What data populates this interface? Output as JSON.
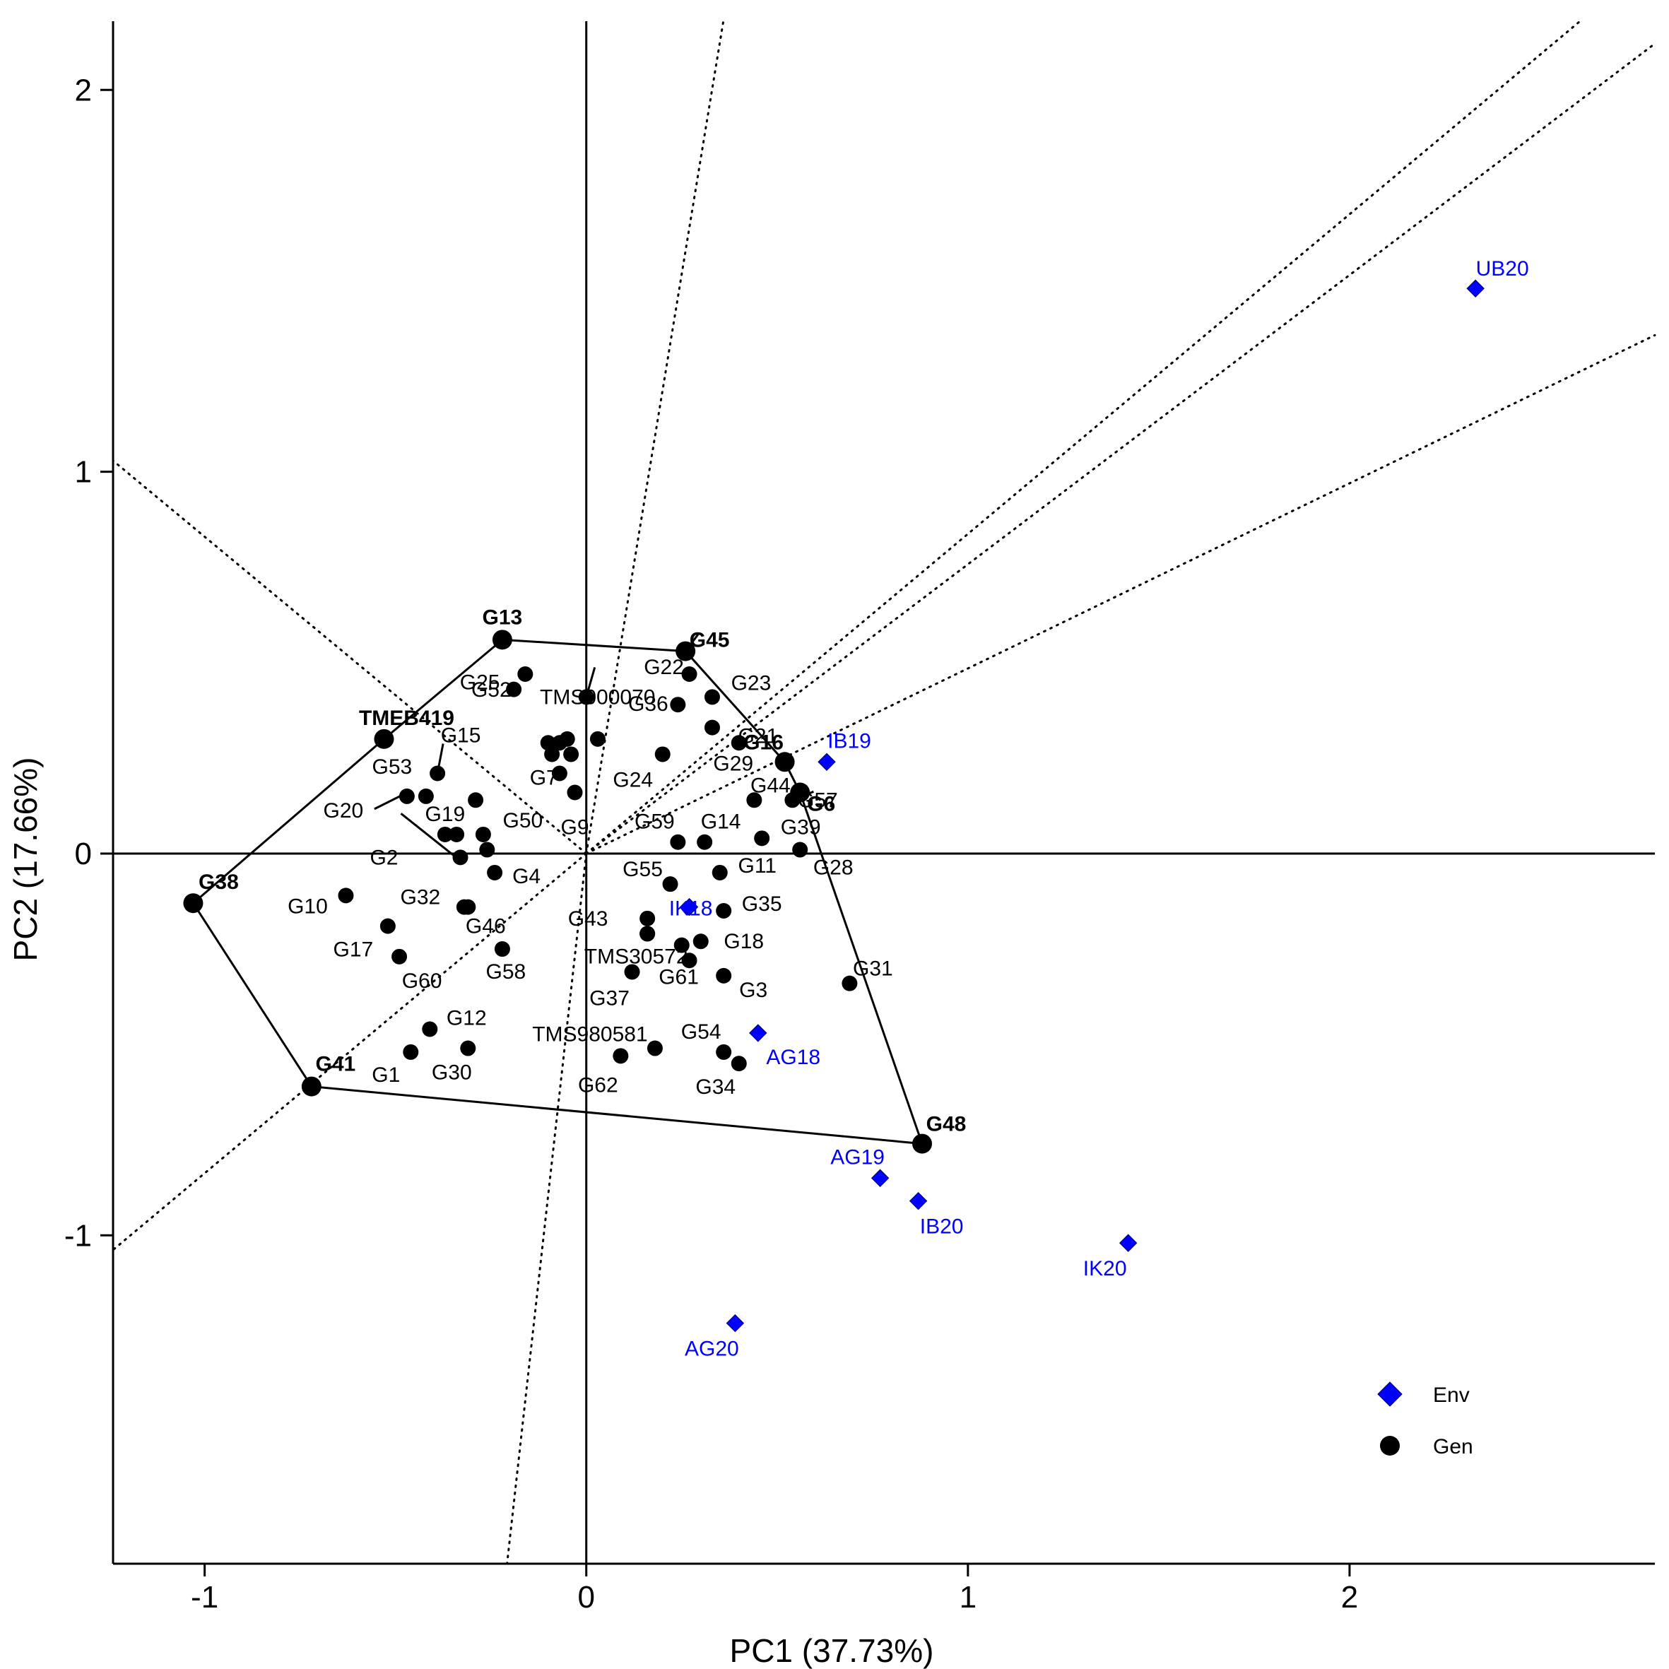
{
  "chart_data": {
    "type": "scatter",
    "title": "",
    "xlabel": "PC1 (37.73%)",
    "ylabel": "PC2 (17.66%)",
    "xlim": [
      -1.24,
      2.8
    ],
    "ylim": [
      -1.86,
      2.18
    ],
    "xticks": [
      -1,
      0,
      1,
      2
    ],
    "yticks": [
      -1,
      0,
      1,
      2
    ],
    "xtick_labels": [
      "-1",
      "0",
      "1",
      "2"
    ],
    "ytick_labels": [
      "-1",
      "0",
      "1",
      "2"
    ],
    "grid": false,
    "legend_position": "bottom-right",
    "env_color": "#0000ff",
    "gen_color": "#000000",
    "legend": [
      {
        "name": "Env",
        "marker": "diamond",
        "color": "#0000ff"
      },
      {
        "name": "Gen",
        "marker": "circle",
        "color": "#000000"
      }
    ],
    "environments": [
      {
        "name": "UB20",
        "x": 2.33,
        "y": 1.48
      },
      {
        "name": "IB19",
        "x": 0.63,
        "y": 0.24
      },
      {
        "name": "IK18",
        "x": 0.27,
        "y": -0.14
      },
      {
        "name": "AG18",
        "x": 0.45,
        "y": -0.47
      },
      {
        "name": "AG19",
        "x": 0.77,
        "y": -0.85
      },
      {
        "name": "IB20",
        "x": 0.87,
        "y": -0.91
      },
      {
        "name": "IK20",
        "x": 1.42,
        "y": -1.02
      },
      {
        "name": "AG20",
        "x": 0.39,
        "y": -1.23
      }
    ],
    "genotypes": [
      {
        "name": "G13",
        "x": -0.22,
        "y": 0.56,
        "vertex": true
      },
      {
        "name": "G45",
        "x": 0.26,
        "y": 0.53,
        "vertex": true
      },
      {
        "name": "G16",
        "x": 0.52,
        "y": 0.24,
        "vertex": true
      },
      {
        "name": "G6",
        "x": 0.56,
        "y": 0.16,
        "vertex": true
      },
      {
        "name": "G48",
        "x": 0.88,
        "y": -0.76,
        "vertex": true
      },
      {
        "name": "G41",
        "x": -0.72,
        "y": -0.61,
        "vertex": true
      },
      {
        "name": "G38",
        "x": -1.03,
        "y": -0.13,
        "vertex": true
      },
      {
        "name": "TMEB419",
        "x": -0.53,
        "y": 0.3,
        "vertex": true
      },
      {
        "name": "TMS000070",
        "x": 0.0,
        "y": 0.41
      },
      {
        "name": "G25",
        "x": -0.19,
        "y": 0.43
      },
      {
        "name": "G52",
        "x": -0.16,
        "y": 0.47
      },
      {
        "name": "G22",
        "x": 0.27,
        "y": 0.47
      },
      {
        "name": "G36",
        "x": 0.24,
        "y": 0.39
      },
      {
        "name": "G23",
        "x": 0.33,
        "y": 0.41
      },
      {
        "name": "G21",
        "x": 0.33,
        "y": 0.33
      },
      {
        "name": "G15",
        "x": -0.39,
        "y": 0.21
      },
      {
        "name": "G53",
        "x": -0.42,
        "y": 0.15
      },
      {
        "name": "G20",
        "x": -0.47,
        "y": 0.15
      },
      {
        "name": "G7",
        "x": -0.1,
        "y": 0.29
      },
      {
        "name": "G9",
        "x": -0.03,
        "y": 0.16
      },
      {
        "name": "G24",
        "x": 0.2,
        "y": 0.26
      },
      {
        "name": "G29",
        "x": 0.4,
        "y": 0.29
      },
      {
        "name": "G44",
        "x": 0.44,
        "y": 0.14
      },
      {
        "name": "G57",
        "x": 0.54,
        "y": 0.14
      },
      {
        "name": "G19",
        "x": -0.37,
        "y": 0.05
      },
      {
        "name": "G50",
        "x": -0.27,
        "y": 0.05
      },
      {
        "name": "G59",
        "x": 0.24,
        "y": 0.03
      },
      {
        "name": "G14",
        "x": 0.31,
        "y": 0.03
      },
      {
        "name": "G39",
        "x": 0.46,
        "y": 0.04
      },
      {
        "name": "G28",
        "x": 0.56,
        "y": 0.01
      },
      {
        "name": "G2",
        "x": -0.33,
        "y": -0.01
      },
      {
        "name": "G4",
        "x": -0.24,
        "y": -0.05
      },
      {
        "name": "G55",
        "x": 0.22,
        "y": -0.08
      },
      {
        "name": "G11",
        "x": 0.35,
        "y": -0.05
      },
      {
        "name": "G10",
        "x": -0.63,
        "y": -0.11
      },
      {
        "name": "G32",
        "x": -0.32,
        "y": -0.14
      },
      {
        "name": "G43",
        "x": 0.16,
        "y": -0.17
      },
      {
        "name": "G35",
        "x": 0.36,
        "y": -0.15
      },
      {
        "name": "G17",
        "x": -0.52,
        "y": -0.19
      },
      {
        "name": "G46",
        "x": -0.31,
        "y": -0.14
      },
      {
        "name": "TMS30572",
        "x": 0.16,
        "y": -0.21
      },
      {
        "name": "G18",
        "x": 0.3,
        "y": -0.23
      },
      {
        "name": "G60",
        "x": -0.49,
        "y": -0.27
      },
      {
        "name": "G58",
        "x": -0.22,
        "y": -0.25
      },
      {
        "name": "G37",
        "x": 0.12,
        "y": -0.31
      },
      {
        "name": "G61",
        "x": 0.27,
        "y": -0.28
      },
      {
        "name": "G3",
        "x": 0.36,
        "y": -0.32
      },
      {
        "name": "G31",
        "x": 0.69,
        "y": -0.34
      },
      {
        "name": "G12",
        "x": -0.41,
        "y": -0.46
      },
      {
        "name": "G1",
        "x": -0.46,
        "y": -0.52
      },
      {
        "name": "G30",
        "x": -0.31,
        "y": -0.51
      },
      {
        "name": "TMS980581",
        "x": 0.18,
        "y": -0.51
      },
      {
        "name": "G62",
        "x": 0.09,
        "y": -0.53
      },
      {
        "name": "G54",
        "x": 0.36,
        "y": -0.52
      },
      {
        "name": "G34",
        "x": 0.4,
        "y": -0.55
      }
    ],
    "unlabeled_genotypes": [
      {
        "x": -0.07,
        "y": 0.29
      },
      {
        "x": -0.05,
        "y": 0.3
      },
      {
        "x": -0.04,
        "y": 0.26
      },
      {
        "x": -0.09,
        "y": 0.26
      },
      {
        "x": 0.03,
        "y": 0.3
      },
      {
        "x": -0.07,
        "y": 0.21
      },
      {
        "x": -0.29,
        "y": 0.14
      },
      {
        "x": -0.34,
        "y": 0.05
      },
      {
        "x": -0.26,
        "y": 0.01
      },
      {
        "x": 0.25,
        "y": -0.24
      },
      {
        "x": 0.16,
        "y": -0.21
      }
    ],
    "polygon": [
      "G13",
      "G45",
      "G16",
      "G6",
      "G48",
      "G41",
      "G38",
      "TMEB419"
    ],
    "sector_lines": [
      {
        "direction": [
          0.0458,
          0.278
        ]
      },
      {
        "direction": [
          -0.0558,
          -0.5
        ]
      },
      {
        "direction": [
          -0.42,
          0.3485
        ]
      },
      {
        "direction": [
          0.43,
          0.36
        ]
      },
      {
        "direction": [
          -0.43,
          -0.36
        ]
      },
      {
        "direction": [
          0.33,
          0.25
        ]
      },
      {
        "direction": [
          0.33,
          0.16
        ]
      }
    ]
  }
}
